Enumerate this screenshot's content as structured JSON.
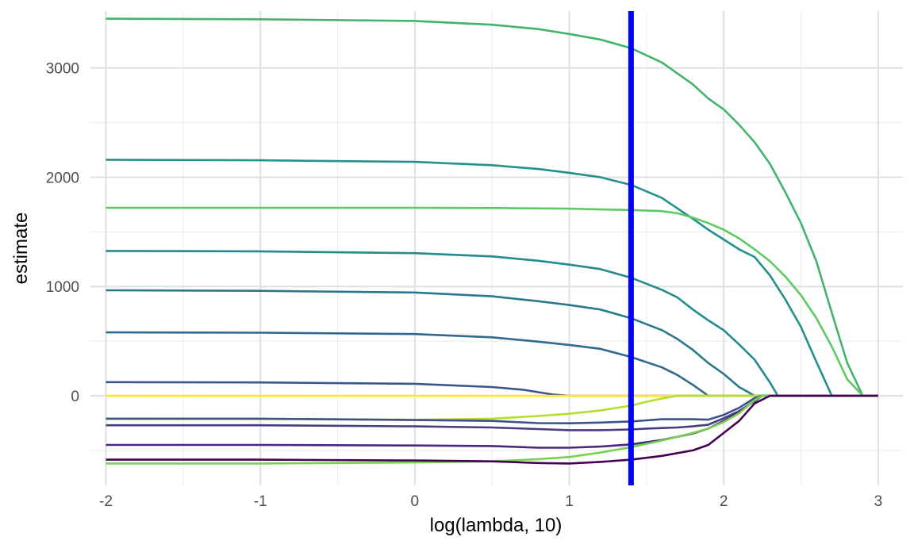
{
  "chart_data": {
    "type": "line",
    "xlabel": "log(lambda, 10)",
    "ylabel": "estimate",
    "xlim": [
      -2.1,
      3.16
    ],
    "ylim": [
      -820,
      3520
    ],
    "x_ticks": [
      -2,
      -1,
      0,
      1,
      2,
      3
    ],
    "x_tick_labels": [
      "-2",
      "-1",
      "0",
      "1",
      "2",
      "3"
    ],
    "y_ticks": [
      0,
      1000,
      2000,
      3000
    ],
    "y_tick_labels": [
      "0",
      "1000",
      "2000",
      "3000"
    ],
    "x_minor_ticks": [
      -1.5,
      -0.5,
      0.5,
      1.5,
      2.5
    ],
    "y_minor_ticks": [
      -500,
      500,
      1500,
      2500
    ],
    "grid": true,
    "legend": "none",
    "vline": {
      "x": 1.4,
      "color": "#0000FF"
    },
    "series": [
      {
        "color": "#41B46A",
        "points": [
          [
            -2,
            3450
          ],
          [
            -1,
            3445
          ],
          [
            0,
            3430
          ],
          [
            0.5,
            3395
          ],
          [
            0.8,
            3355
          ],
          [
            1,
            3310
          ],
          [
            1.2,
            3260
          ],
          [
            1.4,
            3180
          ],
          [
            1.6,
            3050
          ],
          [
            1.8,
            2850
          ],
          [
            1.9,
            2720
          ],
          [
            2.0,
            2620
          ],
          [
            2.1,
            2480
          ],
          [
            2.2,
            2320
          ],
          [
            2.3,
            2120
          ],
          [
            2.4,
            1860
          ],
          [
            2.5,
            1580
          ],
          [
            2.6,
            1230
          ],
          [
            2.7,
            760
          ],
          [
            2.8,
            300
          ],
          [
            2.9,
            0
          ],
          [
            3,
            0
          ]
        ]
      },
      {
        "color": "#21918C",
        "points": [
          [
            -2,
            2160
          ],
          [
            -1,
            2155
          ],
          [
            0,
            2140
          ],
          [
            0.5,
            2110
          ],
          [
            0.8,
            2075
          ],
          [
            1,
            2040
          ],
          [
            1.2,
            2000
          ],
          [
            1.4,
            1930
          ],
          [
            1.6,
            1810
          ],
          [
            1.8,
            1620
          ],
          [
            1.9,
            1520
          ],
          [
            2.0,
            1430
          ],
          [
            2.1,
            1340
          ],
          [
            2.2,
            1270
          ],
          [
            2.3,
            1100
          ],
          [
            2.4,
            880
          ],
          [
            2.5,
            630
          ],
          [
            2.6,
            310
          ],
          [
            2.7,
            0
          ],
          [
            3,
            0
          ]
        ]
      },
      {
        "color": "#5EC962",
        "points": [
          [
            -2,
            1720
          ],
          [
            -1,
            1720
          ],
          [
            0,
            1720
          ],
          [
            0.5,
            1718
          ],
          [
            1,
            1712
          ],
          [
            1.2,
            1705
          ],
          [
            1.4,
            1700
          ],
          [
            1.6,
            1690
          ],
          [
            1.7,
            1670
          ],
          [
            1.8,
            1630
          ],
          [
            1.9,
            1580
          ],
          [
            2.0,
            1520
          ],
          [
            2.1,
            1440
          ],
          [
            2.2,
            1340
          ],
          [
            2.3,
            1230
          ],
          [
            2.4,
            1090
          ],
          [
            2.5,
            920
          ],
          [
            2.6,
            710
          ],
          [
            2.7,
            450
          ],
          [
            2.8,
            150
          ],
          [
            2.9,
            0
          ],
          [
            3,
            0
          ]
        ]
      },
      {
        "color": "#238A8D",
        "points": [
          [
            -2,
            1325
          ],
          [
            -1,
            1322
          ],
          [
            0,
            1305
          ],
          [
            0.5,
            1275
          ],
          [
            0.8,
            1235
          ],
          [
            1,
            1200
          ],
          [
            1.2,
            1160
          ],
          [
            1.4,
            1080
          ],
          [
            1.6,
            970
          ],
          [
            1.7,
            900
          ],
          [
            1.8,
            790
          ],
          [
            1.9,
            690
          ],
          [
            2.0,
            600
          ],
          [
            2.1,
            470
          ],
          [
            2.2,
            330
          ],
          [
            2.3,
            120
          ],
          [
            2.35,
            0
          ],
          [
            3,
            0
          ]
        ]
      },
      {
        "color": "#2A788E",
        "points": [
          [
            -2,
            965
          ],
          [
            -1,
            960
          ],
          [
            0,
            945
          ],
          [
            0.5,
            910
          ],
          [
            0.8,
            865
          ],
          [
            1,
            830
          ],
          [
            1.2,
            790
          ],
          [
            1.4,
            710
          ],
          [
            1.6,
            600
          ],
          [
            1.7,
            520
          ],
          [
            1.8,
            420
          ],
          [
            1.9,
            300
          ],
          [
            2.0,
            200
          ],
          [
            2.1,
            80
          ],
          [
            2.2,
            0
          ],
          [
            3,
            0
          ]
        ]
      },
      {
        "color": "#31688E",
        "points": [
          [
            -2,
            580
          ],
          [
            -1,
            577
          ],
          [
            0,
            565
          ],
          [
            0.5,
            535
          ],
          [
            0.8,
            495
          ],
          [
            1,
            465
          ],
          [
            1.2,
            430
          ],
          [
            1.4,
            355
          ],
          [
            1.6,
            260
          ],
          [
            1.7,
            190
          ],
          [
            1.8,
            100
          ],
          [
            1.9,
            0
          ],
          [
            3,
            0
          ]
        ]
      },
      {
        "color": "#39568C",
        "points": [
          [
            -2,
            125
          ],
          [
            -1,
            122
          ],
          [
            0,
            110
          ],
          [
            0.5,
            80
          ],
          [
            0.7,
            55
          ],
          [
            0.9,
            10
          ],
          [
            1,
            0
          ],
          [
            3,
            0
          ]
        ]
      },
      {
        "color": "#FDE725",
        "points": [
          [
            -2,
            0
          ],
          [
            -1,
            0
          ],
          [
            0,
            0
          ],
          [
            1,
            0
          ],
          [
            2,
            0
          ],
          [
            3,
            0
          ]
        ]
      },
      {
        "color": "#B5DE2B",
        "points": [
          [
            -2,
            -210
          ],
          [
            -1,
            -212
          ],
          [
            0,
            -220
          ],
          [
            0.5,
            -210
          ],
          [
            0.8,
            -185
          ],
          [
            1,
            -165
          ],
          [
            1.2,
            -135
          ],
          [
            1.4,
            -90
          ],
          [
            1.5,
            -55
          ],
          [
            1.6,
            -25
          ],
          [
            1.7,
            0
          ],
          [
            3,
            0
          ]
        ]
      },
      {
        "color": "#3B528B",
        "points": [
          [
            -2,
            -210
          ],
          [
            -1,
            -210
          ],
          [
            0,
            -222
          ],
          [
            0.5,
            -230
          ],
          [
            0.8,
            -250
          ],
          [
            1,
            -252
          ],
          [
            1.2,
            -245
          ],
          [
            1.4,
            -235
          ],
          [
            1.5,
            -225
          ],
          [
            1.6,
            -215
          ],
          [
            1.8,
            -215
          ],
          [
            1.9,
            -218
          ],
          [
            2.0,
            -175
          ],
          [
            2.1,
            -110
          ],
          [
            2.2,
            -20
          ],
          [
            2.25,
            0
          ],
          [
            3,
            0
          ]
        ]
      },
      {
        "color": "#433E85",
        "points": [
          [
            -2,
            -270
          ],
          [
            -1,
            -270
          ],
          [
            0,
            -280
          ],
          [
            0.5,
            -290
          ],
          [
            0.8,
            -305
          ],
          [
            1,
            -315
          ],
          [
            1.2,
            -315
          ],
          [
            1.4,
            -308
          ],
          [
            1.5,
            -300
          ],
          [
            1.6,
            -295
          ],
          [
            1.7,
            -290
          ],
          [
            1.8,
            -280
          ],
          [
            1.9,
            -265
          ],
          [
            2.0,
            -205
          ],
          [
            2.1,
            -140
          ],
          [
            2.2,
            -50
          ],
          [
            2.25,
            0
          ],
          [
            3,
            0
          ]
        ]
      },
      {
        "color": "#482878",
        "points": [
          [
            -2,
            -450
          ],
          [
            -1,
            -450
          ],
          [
            0,
            -455
          ],
          [
            0.5,
            -460
          ],
          [
            0.8,
            -475
          ],
          [
            1,
            -475
          ],
          [
            1.2,
            -465
          ],
          [
            1.4,
            -445
          ],
          [
            1.6,
            -405
          ],
          [
            1.8,
            -345
          ],
          [
            1.9,
            -300
          ],
          [
            2.0,
            -230
          ],
          [
            2.1,
            -150
          ],
          [
            2.2,
            -40
          ],
          [
            2.25,
            0
          ],
          [
            3,
            0
          ]
        ]
      },
      {
        "color": "#7AD151",
        "points": [
          [
            -2,
            -620
          ],
          [
            -1,
            -620
          ],
          [
            0,
            -610
          ],
          [
            0.5,
            -600
          ],
          [
            0.8,
            -580
          ],
          [
            1,
            -560
          ],
          [
            1.2,
            -520
          ],
          [
            1.4,
            -470
          ],
          [
            1.6,
            -410
          ],
          [
            1.8,
            -340
          ],
          [
            1.9,
            -300
          ],
          [
            2.0,
            -240
          ],
          [
            2.1,
            -160
          ],
          [
            2.2,
            -40
          ],
          [
            2.25,
            0
          ],
          [
            3,
            0
          ]
        ]
      },
      {
        "color": "#440154",
        "points": [
          [
            -2,
            -585
          ],
          [
            -1,
            -585
          ],
          [
            0,
            -592
          ],
          [
            0.5,
            -600
          ],
          [
            0.8,
            -615
          ],
          [
            1,
            -620
          ],
          [
            1.2,
            -605
          ],
          [
            1.4,
            -585
          ],
          [
            1.6,
            -550
          ],
          [
            1.8,
            -500
          ],
          [
            1.9,
            -450
          ],
          [
            2.0,
            -340
          ],
          [
            2.1,
            -230
          ],
          [
            2.2,
            -70
          ],
          [
            2.3,
            0
          ],
          [
            3,
            0
          ]
        ]
      }
    ]
  }
}
